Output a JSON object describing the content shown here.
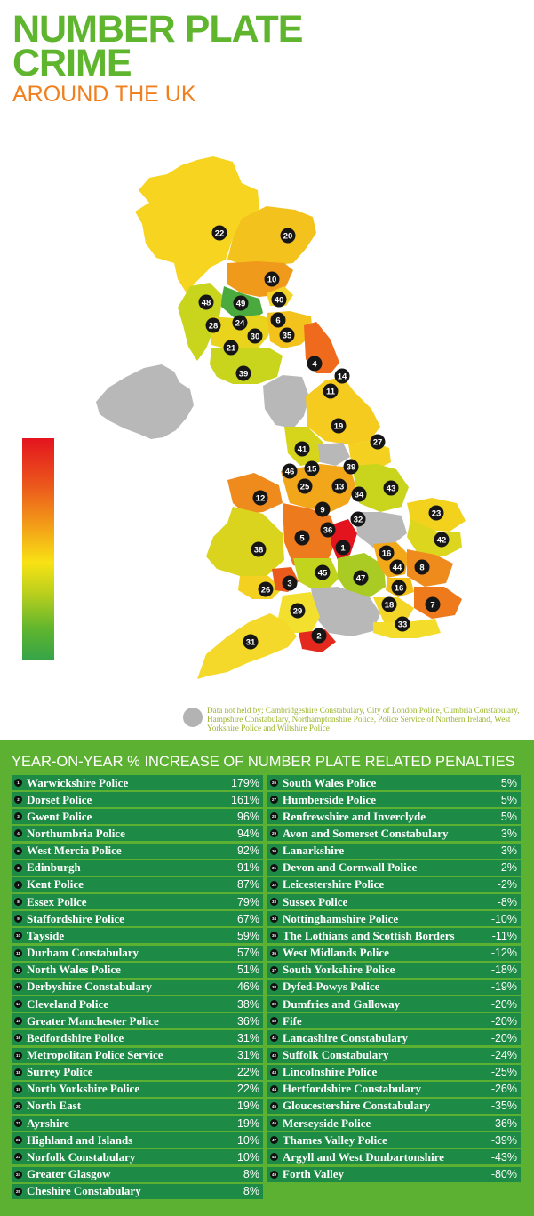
{
  "header": {
    "title_line1": "NUMBER PLATE",
    "title_line2": "CRIME",
    "subtitle": "AROUND THE UK"
  },
  "colors": {
    "title": "#5fb52e",
    "subtitle": "#f07f1e",
    "panel": "#5db132",
    "row": "#1d8a45",
    "no_data": "#b3b3b3",
    "scale_high": "#e3141e",
    "scale_low": "#35a448"
  },
  "map": {
    "markers": [
      "22",
      "20",
      "10",
      "40",
      "48",
      "49",
      "6",
      "28",
      "24",
      "30",
      "35",
      "21",
      "4",
      "14",
      "11",
      "39",
      "19",
      "27",
      "41",
      "46",
      "15",
      "39",
      "25",
      "13",
      "34",
      "43",
      "12",
      "9",
      "23",
      "32",
      "1",
      "36",
      "5",
      "42",
      "38",
      "16",
      "44",
      "8",
      "45",
      "47",
      "3",
      "26",
      "16",
      "18",
      "7",
      "29",
      "33",
      "2",
      "31"
    ]
  },
  "note": {
    "text": "Data not held by; Cambridgeshire Constabulary, City of London Police, Cumbria Constabulary, Hampshire Constabulary, Northamptonshire Police, Police Service of Northern Ireland, West Yorkshire Police and Wiltshire Police"
  },
  "table": {
    "title": "YEAR-ON-YEAR % INCREASE OF NUMBER PLATE RELATED PENALTIES",
    "left": [
      {
        "rank": "1",
        "name": "Warwickshire Police",
        "value": "179%"
      },
      {
        "rank": "2",
        "name": "Dorset Police",
        "value": "161%"
      },
      {
        "rank": "3",
        "name": "Gwent Police",
        "value": "96%"
      },
      {
        "rank": "4",
        "name": "Northumbria Police",
        "value": "94%"
      },
      {
        "rank": "5",
        "name": "West Mercia Police",
        "value": "92%"
      },
      {
        "rank": "6",
        "name": "Edinburgh",
        "value": "91%"
      },
      {
        "rank": "7",
        "name": "Kent Police",
        "value": "87%"
      },
      {
        "rank": "8",
        "name": "Essex Police",
        "value": "79%"
      },
      {
        "rank": "9",
        "name": "Staffordshire Police",
        "value": "67%"
      },
      {
        "rank": "10",
        "name": "Tayside",
        "value": "59%"
      },
      {
        "rank": "11",
        "name": "Durham Constabulary",
        "value": "57%"
      },
      {
        "rank": "12",
        "name": "North Wales Police",
        "value": "51%"
      },
      {
        "rank": "13",
        "name": "Derbyshire Constabulary",
        "value": "46%"
      },
      {
        "rank": "14",
        "name": "Cleveland Police",
        "value": "38%"
      },
      {
        "rank": "15",
        "name": "Greater Manchester Police",
        "value": "36%"
      },
      {
        "rank": "16",
        "name": "Bedfordshire Police",
        "value": "31%"
      },
      {
        "rank": "17",
        "name": "Metropolitan Police Service",
        "value": "31%"
      },
      {
        "rank": "18",
        "name": "Surrey Police",
        "value": "22%"
      },
      {
        "rank": "19",
        "name": "North Yorkshire Police",
        "value": "22%"
      },
      {
        "rank": "20",
        "name": "North East",
        "value": "19%"
      },
      {
        "rank": "21",
        "name": "Ayrshire",
        "value": "19%"
      },
      {
        "rank": "22",
        "name": "Highland and Islands",
        "value": "10%"
      },
      {
        "rank": "23",
        "name": "Norfolk Constabulary",
        "value": "10%"
      },
      {
        "rank": "24",
        "name": "Greater Glasgow",
        "value": "8%"
      },
      {
        "rank": "25",
        "name": "Cheshire Constabulary",
        "value": "8%"
      }
    ],
    "right": [
      {
        "rank": "26",
        "name": "South Wales Police",
        "value": "5%"
      },
      {
        "rank": "27",
        "name": "Humberside Police",
        "value": "5%"
      },
      {
        "rank": "28",
        "name": "Renfrewshire and Inverclyde",
        "value": "5%"
      },
      {
        "rank": "29",
        "name": "Avon and Somerset Constabulary",
        "value": "3%"
      },
      {
        "rank": "30",
        "name": "Lanarkshire",
        "value": "3%"
      },
      {
        "rank": "31",
        "name": "Devon and Cornwall Police",
        "value": "-2%"
      },
      {
        "rank": "32",
        "name": "Leicestershire Police",
        "value": "-2%"
      },
      {
        "rank": "33",
        "name": "Sussex Police",
        "value": "-8%"
      },
      {
        "rank": "34",
        "name": "Nottinghamshire Police",
        "value": "-10%"
      },
      {
        "rank": "35",
        "name": "The Lothians and Scottish Borders",
        "value": "-11%"
      },
      {
        "rank": "36",
        "name": "West Midlands Police",
        "value": "-12%"
      },
      {
        "rank": "37",
        "name": "South Yorkshire Police",
        "value": "-18%"
      },
      {
        "rank": "38",
        "name": "Dyfed-Powys Police",
        "value": "-19%"
      },
      {
        "rank": "39",
        "name": "Dumfries and Galloway",
        "value": "-20%"
      },
      {
        "rank": "40",
        "name": "Fife",
        "value": "-20%"
      },
      {
        "rank": "41",
        "name": "Lancashire Constabulary",
        "value": "-20%"
      },
      {
        "rank": "42",
        "name": "Suffolk Constabulary",
        "value": "-24%"
      },
      {
        "rank": "43",
        "name": "Lincolnshire Police",
        "value": "-25%"
      },
      {
        "rank": "44",
        "name": "Hertfordshire Constabulary",
        "value": "-26%"
      },
      {
        "rank": "45",
        "name": "Gloucestershire Constabulary",
        "value": "-35%"
      },
      {
        "rank": "46",
        "name": "Merseyside Police",
        "value": "-36%"
      },
      {
        "rank": "47",
        "name": "Thames Valley Police",
        "value": "-39%"
      },
      {
        "rank": "48",
        "name": "Argyll and West Dunbartonshire",
        "value": "-43%"
      },
      {
        "rank": "49",
        "name": "Forth Valley",
        "value": "-80%"
      }
    ]
  }
}
